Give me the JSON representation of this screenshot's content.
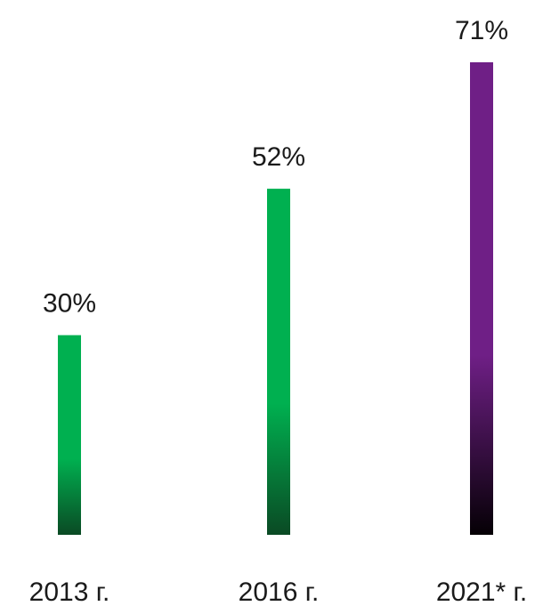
{
  "chart_data": {
    "type": "bar",
    "categories": [
      "2013 г.",
      "2016 г.",
      "2021* г."
    ],
    "values": [
      30,
      52,
      71
    ],
    "value_labels": [
      "30%",
      "52%",
      "71%"
    ],
    "ylim": [
      0,
      71
    ],
    "bar_colors": [
      "#00b050",
      "#00b050",
      "#6f1f86"
    ],
    "bar_base_colors": [
      "#0a4a24",
      "#0a4a24",
      "#050005"
    ],
    "title": "",
    "xlabel": "",
    "ylabel": "",
    "grid": false,
    "legend": "none"
  }
}
